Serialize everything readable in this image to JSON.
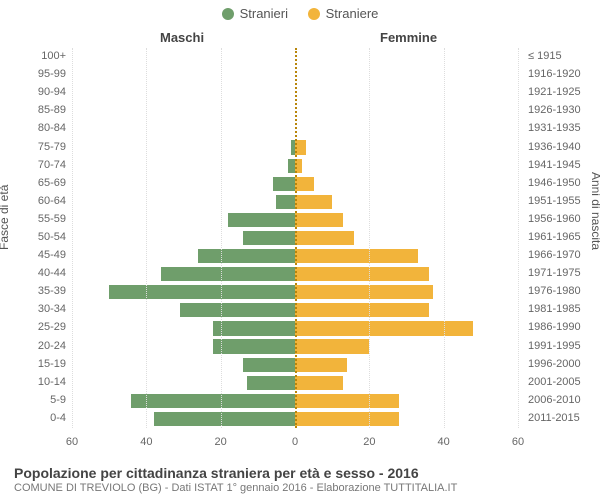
{
  "legend": {
    "male": "Stranieri",
    "female": "Straniere"
  },
  "headers": {
    "male": "Maschi",
    "female": "Femmine"
  },
  "axes": {
    "left_title": "Fasce di età",
    "right_title": "Anni di nascita"
  },
  "colors": {
    "male": "#6f9e6b",
    "female": "#f2b43b",
    "grid": "#dddddd",
    "center": "#b8860b",
    "background": "#ffffff"
  },
  "style": {
    "bar_height_pct": 78,
    "legend_fontsize": 13,
    "header_fontsize": 13,
    "tick_fontsize": 11,
    "title_fontsize": 14,
    "subtitle_fontsize": 11
  },
  "x_axis": {
    "max": 60,
    "ticks": [
      60,
      40,
      20,
      0,
      20,
      40,
      60
    ],
    "tick_positions_abs": [
      -60,
      -40,
      -20,
      0,
      20,
      40,
      60
    ]
  },
  "rows": [
    {
      "age": "100+",
      "birth": "≤ 1915",
      "male": 0,
      "female": 0
    },
    {
      "age": "95-99",
      "birth": "1916-1920",
      "male": 0,
      "female": 0
    },
    {
      "age": "90-94",
      "birth": "1921-1925",
      "male": 0,
      "female": 0
    },
    {
      "age": "85-89",
      "birth": "1926-1930",
      "male": 0,
      "female": 0
    },
    {
      "age": "80-84",
      "birth": "1931-1935",
      "male": 0,
      "female": 0
    },
    {
      "age": "75-79",
      "birth": "1936-1940",
      "male": 1,
      "female": 3
    },
    {
      "age": "70-74",
      "birth": "1941-1945",
      "male": 2,
      "female": 2
    },
    {
      "age": "65-69",
      "birth": "1946-1950",
      "male": 6,
      "female": 5
    },
    {
      "age": "60-64",
      "birth": "1951-1955",
      "male": 5,
      "female": 10
    },
    {
      "age": "55-59",
      "birth": "1956-1960",
      "male": 18,
      "female": 13
    },
    {
      "age": "50-54",
      "birth": "1961-1965",
      "male": 14,
      "female": 16
    },
    {
      "age": "45-49",
      "birth": "1966-1970",
      "male": 26,
      "female": 33
    },
    {
      "age": "40-44",
      "birth": "1971-1975",
      "male": 36,
      "female": 36
    },
    {
      "age": "35-39",
      "birth": "1976-1980",
      "male": 50,
      "female": 37
    },
    {
      "age": "30-34",
      "birth": "1981-1985",
      "male": 31,
      "female": 36
    },
    {
      "age": "25-29",
      "birth": "1986-1990",
      "male": 22,
      "female": 48
    },
    {
      "age": "20-24",
      "birth": "1991-1995",
      "male": 22,
      "female": 20
    },
    {
      "age": "15-19",
      "birth": "1996-2000",
      "male": 14,
      "female": 14
    },
    {
      "age": "10-14",
      "birth": "2001-2005",
      "male": 13,
      "female": 13
    },
    {
      "age": "5-9",
      "birth": "2006-2010",
      "male": 44,
      "female": 28
    },
    {
      "age": "0-4",
      "birth": "2011-2015",
      "male": 38,
      "female": 28
    }
  ],
  "footer": {
    "title": "Popolazione per cittadinanza straniera per età e sesso - 2016",
    "subtitle": "COMUNE DI TREVIOLO (BG) - Dati ISTAT 1° gennaio 2016 - Elaborazione TUTTITALIA.IT"
  }
}
